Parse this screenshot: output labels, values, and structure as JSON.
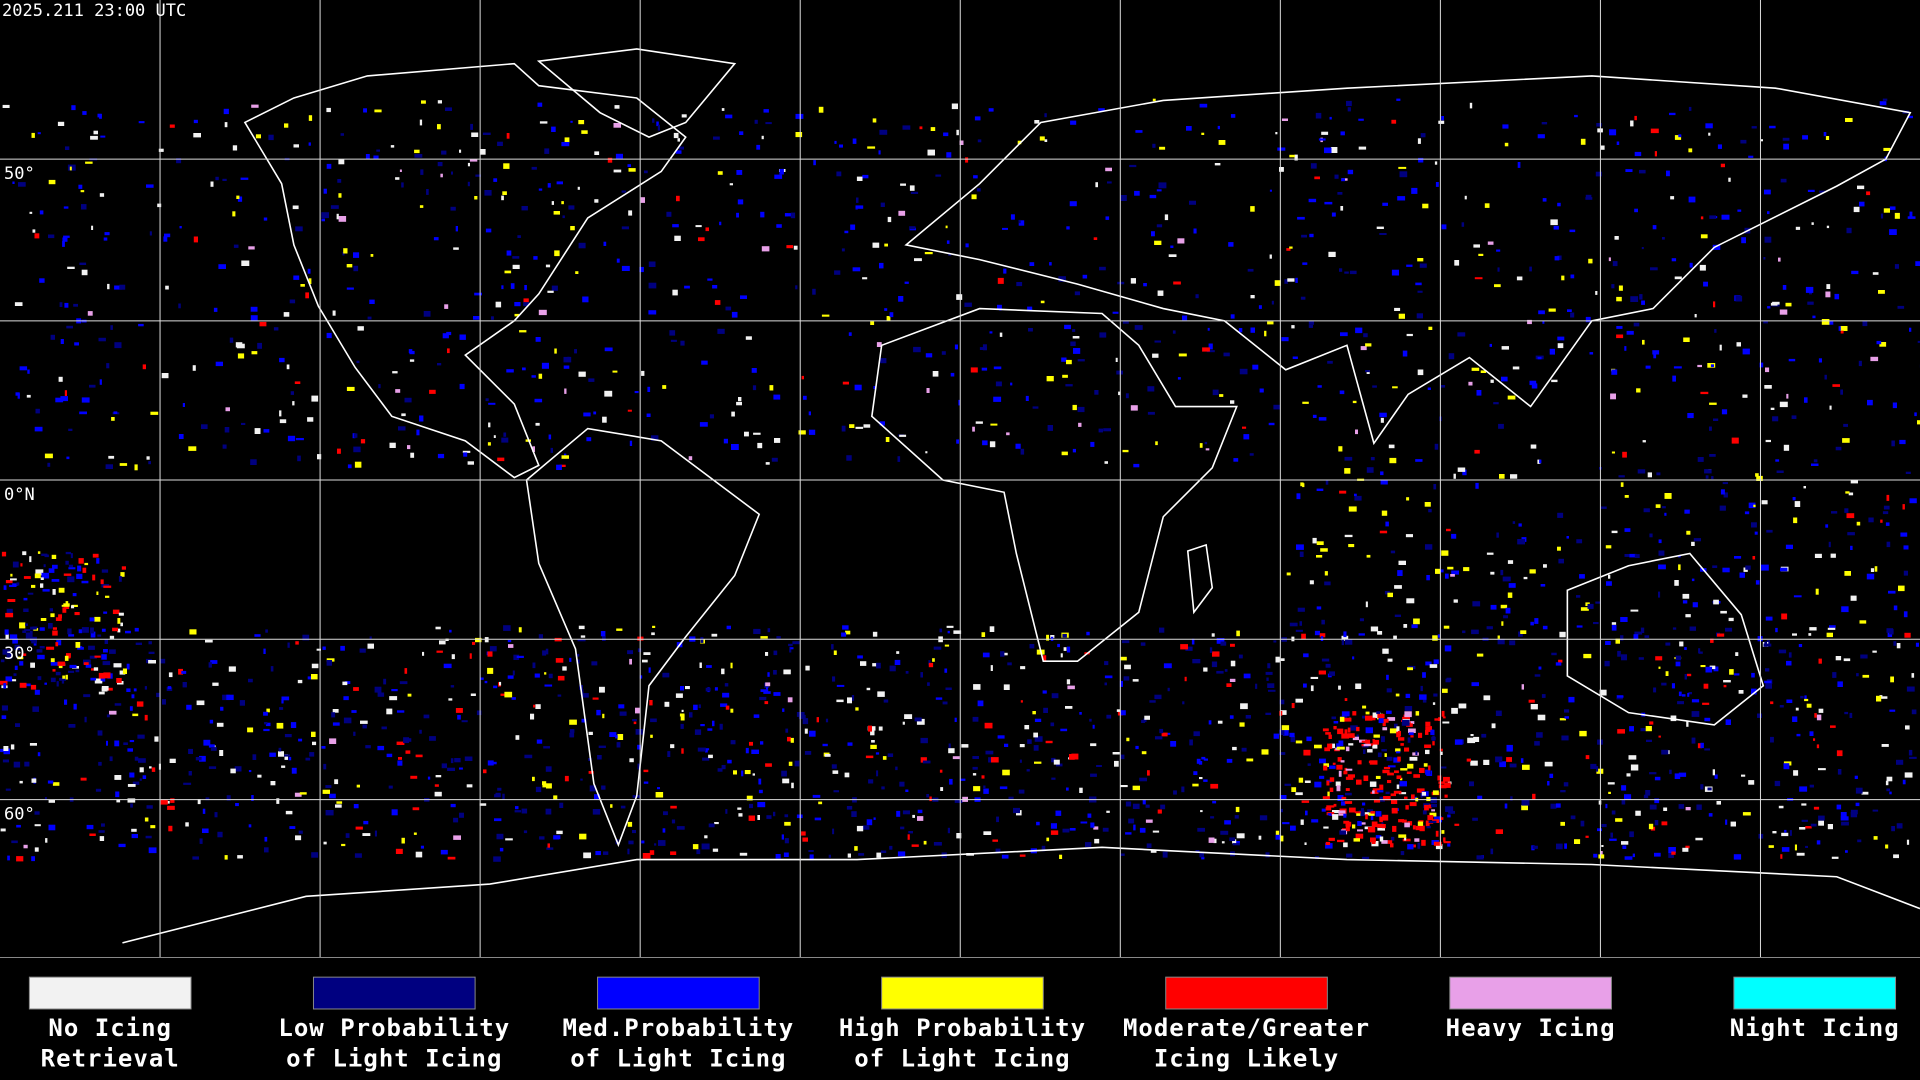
{
  "header": {
    "timestamp": "2025.211 23:00 UTC"
  },
  "map": {
    "lat_labels": [
      "50°",
      "0°N",
      "30°",
      "60°"
    ]
  },
  "legend": {
    "items": [
      {
        "label": [
          "No Icing",
          "Retrieval"
        ],
        "color": "#f2f2f2"
      },
      {
        "label": [
          "Low Probability",
          "of Light Icing"
        ],
        "color": "#000080"
      },
      {
        "label": [
          "Med.Probability",
          "of Light Icing"
        ],
        "color": "#0000ff"
      },
      {
        "label": [
          "High Probability",
          "of Light Icing"
        ],
        "color": "#ffff00"
      },
      {
        "label": [
          "Moderate/Greater",
          "Icing Likely"
        ],
        "color": "#ff0000"
      },
      {
        "label": [
          "Heavy Icing",
          ""
        ],
        "color": "#e8a0e8"
      },
      {
        "label": [
          "Night Icing",
          ""
        ],
        "color": "#00ffff"
      }
    ]
  }
}
